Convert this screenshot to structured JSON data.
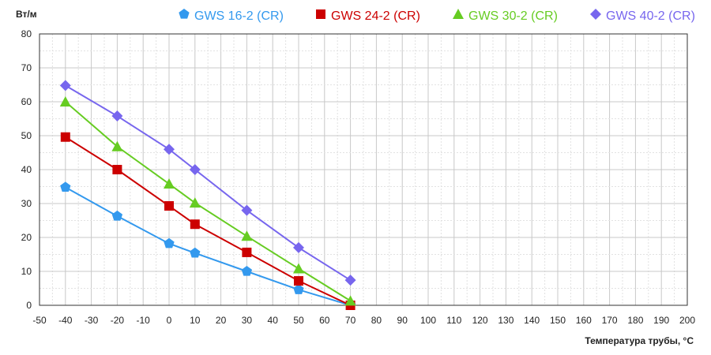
{
  "chart_data": {
    "type": "line",
    "ylabel": "Вт/м",
    "xlabel": "Температура трубы, °С",
    "xlim": [
      -50,
      200
    ],
    "ylim": [
      0,
      80
    ],
    "x_ticks": [
      -50,
      -40,
      -30,
      -20,
      -10,
      0,
      10,
      20,
      30,
      40,
      50,
      60,
      70,
      80,
      90,
      100,
      110,
      120,
      130,
      140,
      150,
      160,
      170,
      180,
      190,
      200
    ],
    "y_ticks": [
      0,
      10,
      20,
      30,
      40,
      50,
      60,
      70,
      80
    ],
    "grid": true,
    "legend_position": "top",
    "series": [
      {
        "name": "GWS 16-2 (CR)",
        "color": "#3399ee",
        "marker": "pentagon",
        "x": [
          -40,
          -20,
          0,
          10,
          30,
          50,
          70
        ],
        "y": [
          34.8,
          26.3,
          18.2,
          15.4,
          10.0,
          4.6,
          0
        ]
      },
      {
        "name": "GWS 24-2 (CR)",
        "color": "#cc0000",
        "marker": "square",
        "x": [
          -40,
          -20,
          0,
          10,
          30,
          50,
          70
        ],
        "y": [
          49.6,
          40.0,
          29.3,
          23.9,
          15.6,
          7.2,
          0
        ]
      },
      {
        "name": "GWS 30-2 (CR)",
        "color": "#66cc22",
        "marker": "triangle",
        "x": [
          -40,
          -20,
          0,
          10,
          30,
          50,
          70
        ],
        "y": [
          60.0,
          46.8,
          35.8,
          30.2,
          20.4,
          10.8,
          1.3
        ]
      },
      {
        "name": "GWS 40-2 (CR)",
        "color": "#7766ee",
        "marker": "diamond",
        "x": [
          -40,
          -20,
          0,
          10,
          30,
          50,
          70
        ],
        "y": [
          64.8,
          55.8,
          46.0,
          40.0,
          28.0,
          17.0,
          7.4
        ]
      }
    ]
  }
}
